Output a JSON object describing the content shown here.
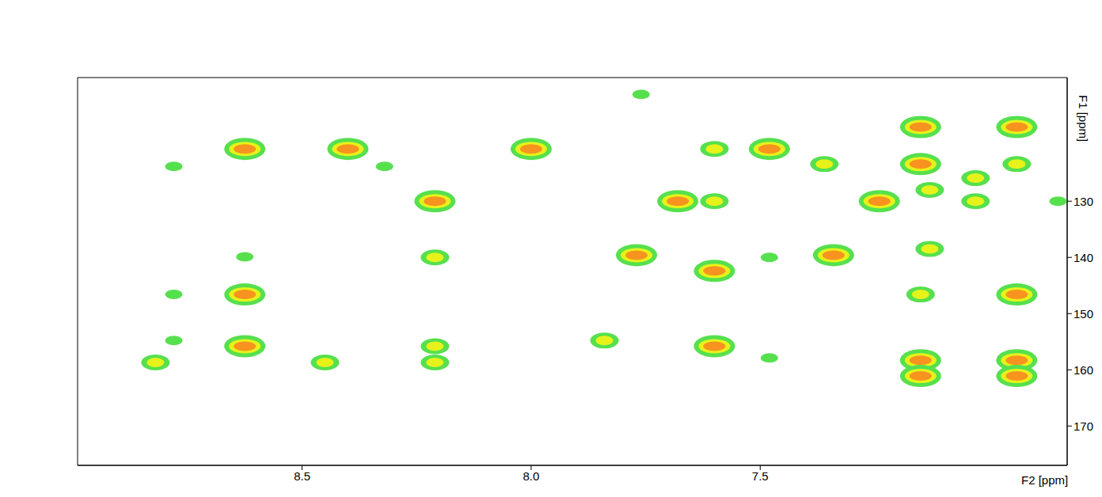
{
  "chart_data": {
    "type": "scatter",
    "x_label": "F2 [ppm]",
    "y_label": "F1 [ppm]",
    "xlim": [
      8.99,
      6.83
    ],
    "ylim": [
      177,
      108
    ],
    "xticks": [
      8.5,
      {
        "value": 8.0,
        "label": "8.0"
      },
      7.5
    ],
    "yticks": [
      130,
      140,
      150,
      160,
      170
    ],
    "x": [
      8.625,
      8.625,
      8.625,
      8.625,
      8.78,
      8.78,
      8.78,
      8.82,
      8.45,
      8.4,
      8.32,
      8.21,
      8.21,
      8.21,
      8.21,
      8.0,
      7.84,
      7.77,
      7.68,
      7.6,
      7.6,
      7.6,
      7.6,
      7.48,
      7.48,
      7.48,
      7.36,
      7.34,
      7.24,
      7.15,
      7.15,
      7.13,
      7.13,
      7.15,
      7.15,
      7.15,
      7.03,
      7.03,
      6.94,
      6.94,
      6.94,
      6.94,
      6.94,
      7.76,
      6.85
    ],
    "y": [
      120.7,
      146.6,
      155.8,
      139.9,
      123.8,
      146.6,
      154.8,
      158.7,
      158.7,
      120.7,
      123.8,
      130,
      140,
      155.8,
      158.7,
      120.7,
      154.8,
      139.6,
      130,
      120.7,
      130,
      142.4,
      155.8,
      120.7,
      157.9,
      140,
      123.4,
      139.6,
      130,
      116.8,
      123.4,
      128,
      138.5,
      146.6,
      158.3,
      161.1,
      125.9,
      130,
      116.8,
      123.4,
      146.6,
      158.3,
      161.1,
      111,
      130
    ],
    "intensity": [
      3,
      3,
      3,
      1,
      1,
      1,
      1,
      2,
      2,
      3,
      1,
      3,
      2,
      2,
      2,
      3,
      2,
      3,
      3,
      2,
      2,
      3,
      3,
      3,
      1,
      1,
      2,
      3,
      3,
      3,
      3,
      2,
      2,
      2,
      3,
      3,
      2,
      2,
      3,
      2,
      3,
      3,
      3,
      1,
      1
    ]
  }
}
